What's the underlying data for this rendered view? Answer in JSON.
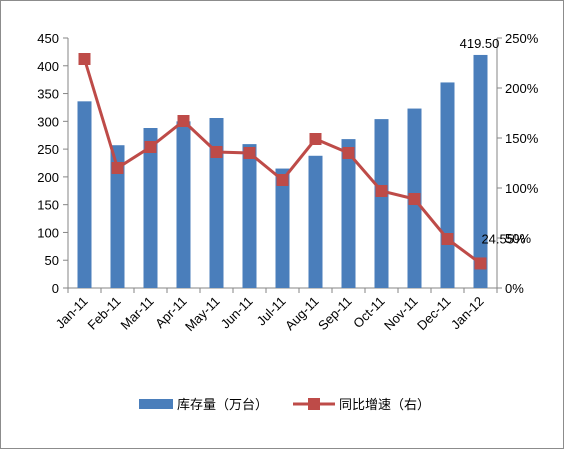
{
  "chart_data": {
    "type": "bar+line",
    "categories": [
      "Jan-11",
      "Feb-11",
      "Mar-11",
      "Apr-11",
      "May-11",
      "Jun-11",
      "Jul-11",
      "Aug-11",
      "Sep-11",
      "Oct-11",
      "Nov-11",
      "Dec-11",
      "Jan-12"
    ],
    "series": [
      {
        "name": "库存量（万台）",
        "type": "bar",
        "axis": "left",
        "color": "#4a7ebb",
        "values": [
          336,
          257,
          288,
          300,
          306,
          259,
          215,
          238,
          268,
          304,
          323,
          370,
          419.5
        ]
      },
      {
        "name": "同比增速（右）",
        "type": "line",
        "axis": "right",
        "color": "#be4b48",
        "values": [
          229,
          120,
          141,
          167,
          136,
          135,
          108,
          149,
          135,
          97,
          89,
          49,
          24.55
        ]
      }
    ],
    "y_left": {
      "ylim": [
        0,
        450
      ],
      "ticks": [
        "0",
        "50",
        "100",
        "150",
        "200",
        "250",
        "300",
        "350",
        "400",
        "450"
      ]
    },
    "y_right": {
      "ylim": [
        0,
        250
      ],
      "ticks": [
        "0%",
        "50%",
        "100%",
        "150%",
        "200%",
        "250%"
      ]
    },
    "data_labels": {
      "last_bar": "419.50",
      "last_line": "24.55%"
    },
    "legend": {
      "position": "bottom"
    },
    "grid": false
  }
}
